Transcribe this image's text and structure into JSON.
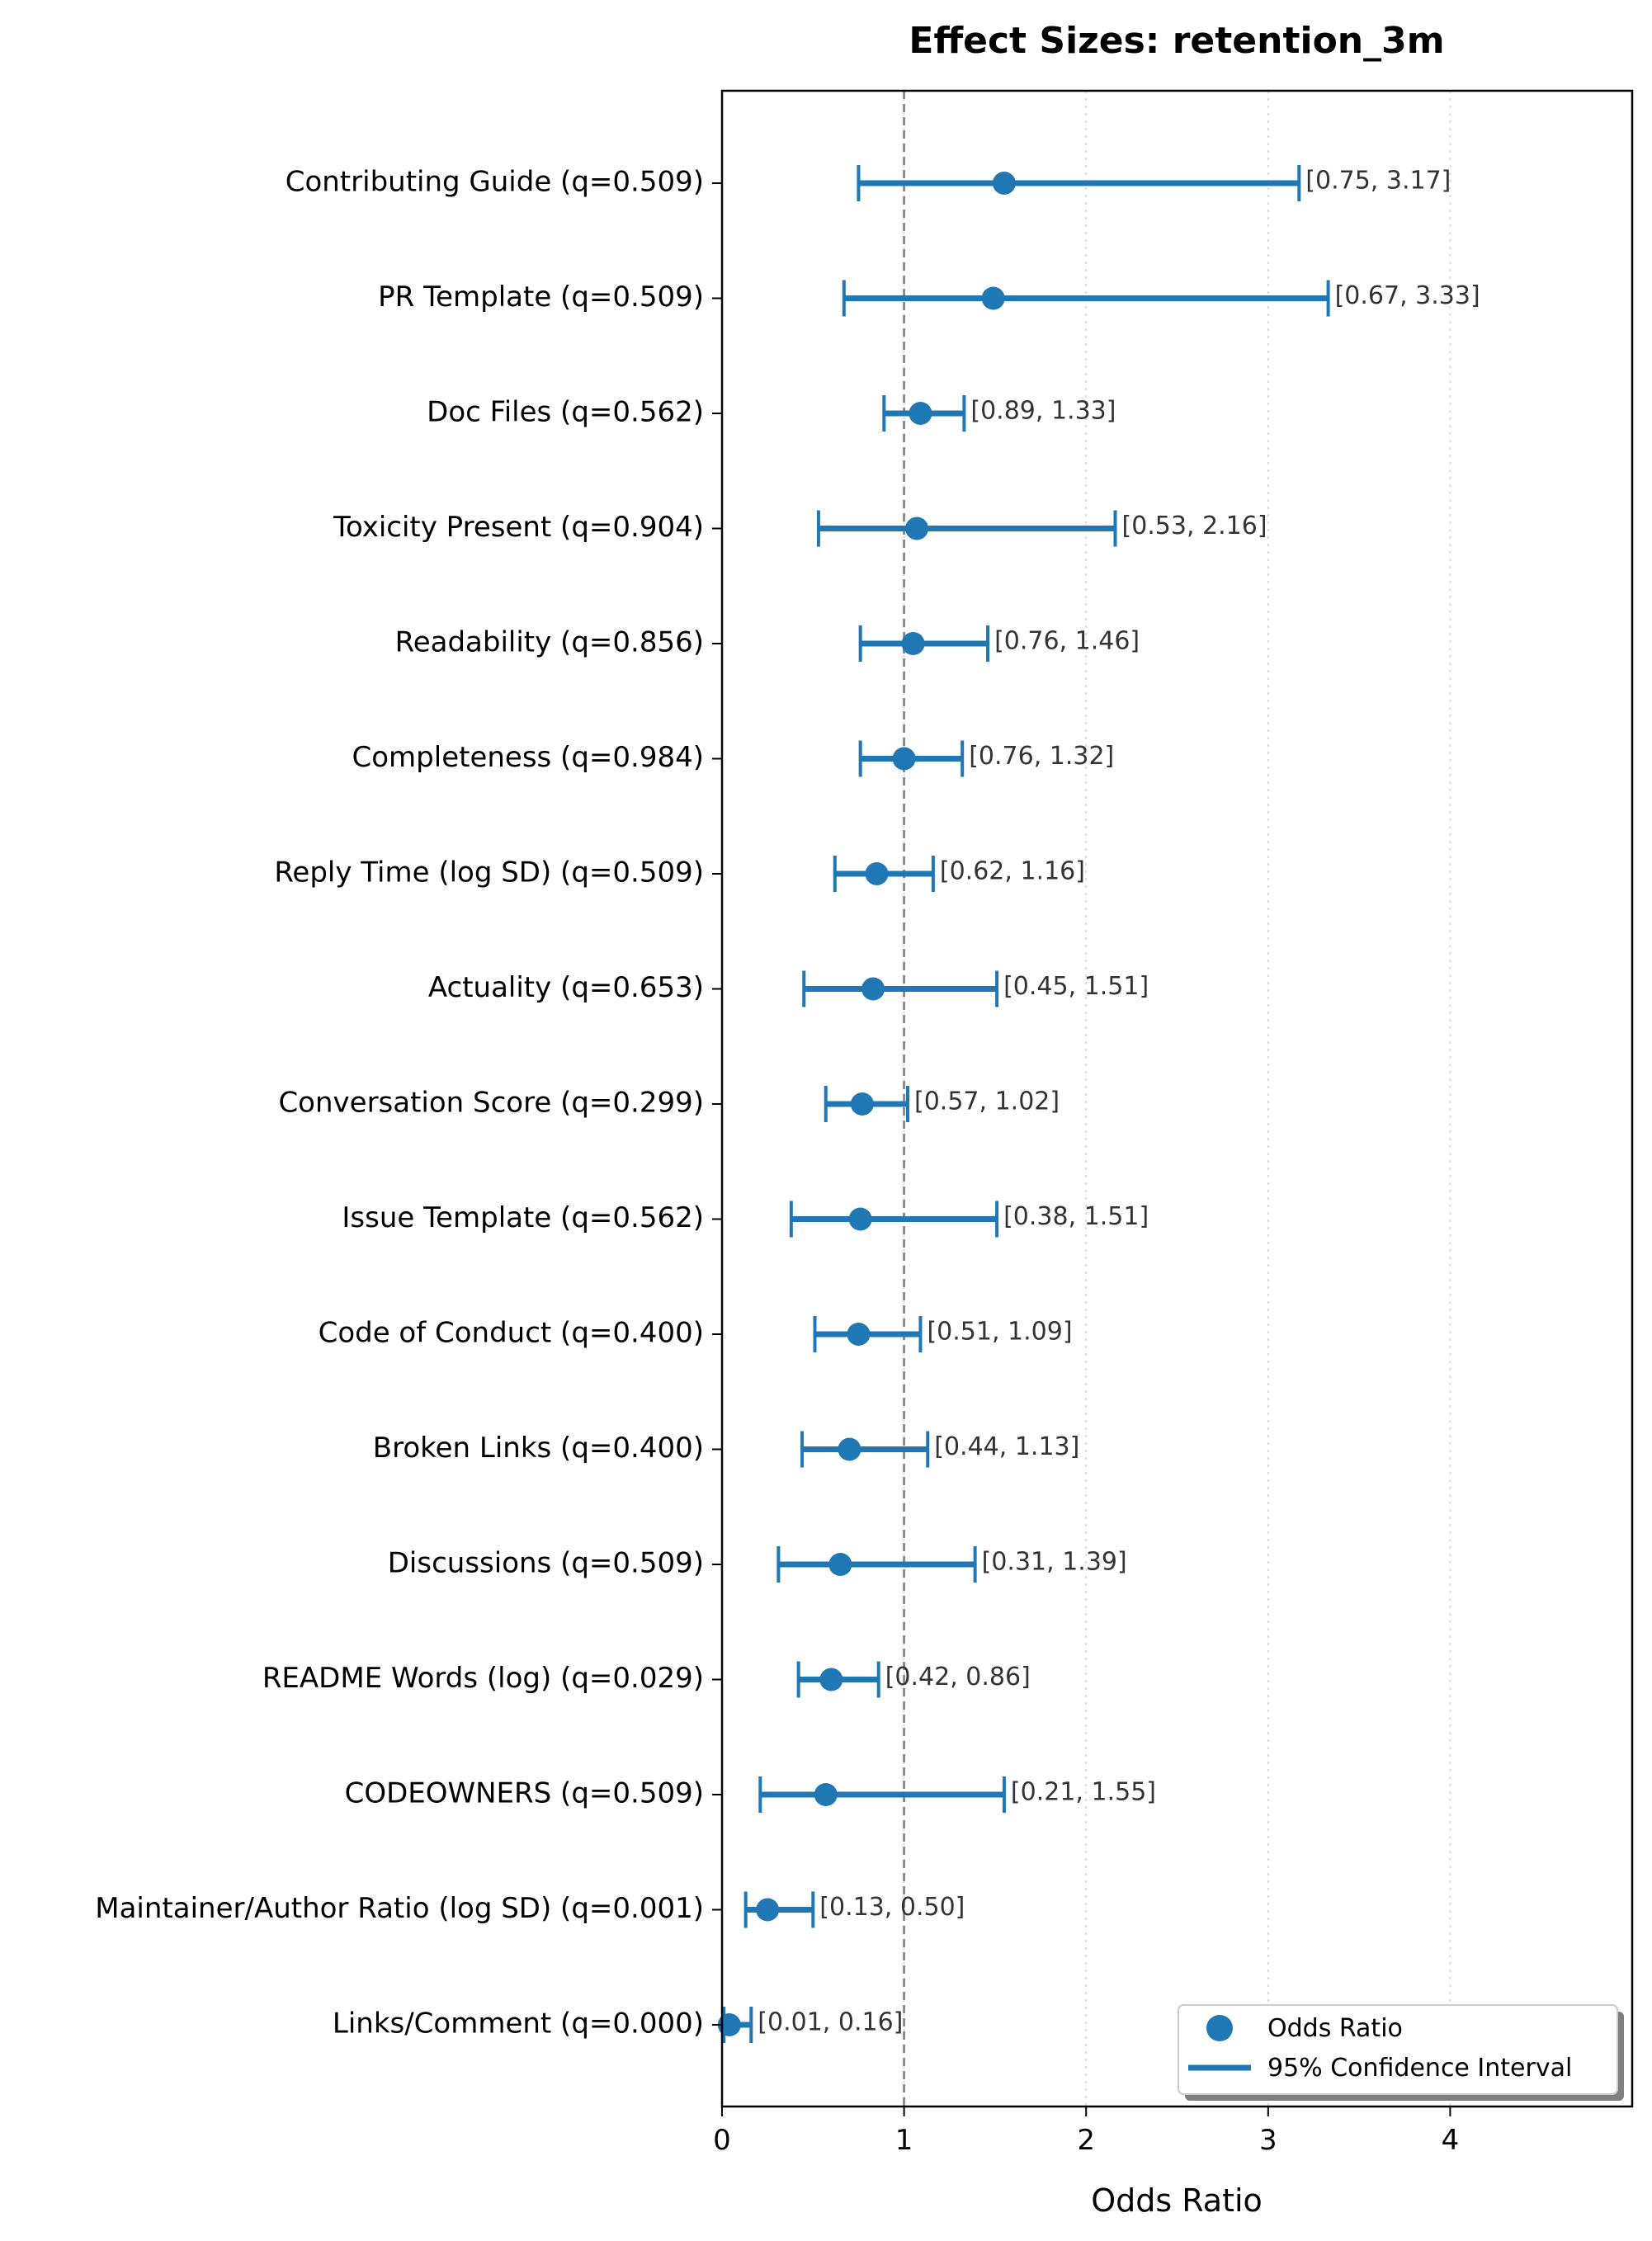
{
  "chart_data": {
    "type": "forest",
    "title": "Effect Sizes: retention_3m",
    "xlabel": "Odds Ratio",
    "ylabel": "",
    "xlim": [
      0,
      5
    ],
    "xticks": [
      0,
      1,
      2,
      3,
      4
    ],
    "x_tick_labels": [
      "0",
      "1",
      "2",
      "3",
      "4"
    ],
    "reference_line": 1,
    "grid": "x-axis minor dotted",
    "legend_position": "lower-right",
    "legend": {
      "point_label": "Odds Ratio",
      "line_label": "95% Confidence Interval"
    },
    "colors": {
      "series": "#1f77b4",
      "reference": "#8c8c8c",
      "grid": "#d9d9d9",
      "ci_text": "#333333"
    },
    "rows": [
      {
        "label": "Contributing Guide (q=0.509)",
        "or": 1.55,
        "low": 0.75,
        "high": 3.17,
        "ci_text": "[0.75, 3.17]"
      },
      {
        "label": "PR Template (q=0.509)",
        "or": 1.49,
        "low": 0.67,
        "high": 3.33,
        "ci_text": "[0.67, 3.33]"
      },
      {
        "label": "Doc Files (q=0.562)",
        "or": 1.09,
        "low": 0.89,
        "high": 1.33,
        "ci_text": "[0.89, 1.33]"
      },
      {
        "label": "Toxicity Present (q=0.904)",
        "or": 1.07,
        "low": 0.53,
        "high": 2.16,
        "ci_text": "[0.53, 2.16]"
      },
      {
        "label": "Readability (q=0.856)",
        "or": 1.05,
        "low": 0.76,
        "high": 1.46,
        "ci_text": "[0.76, 1.46]"
      },
      {
        "label": "Completeness (q=0.984)",
        "or": 1.0,
        "low": 0.76,
        "high": 1.32,
        "ci_text": "[0.76, 1.32]"
      },
      {
        "label": "Reply Time (log SD) (q=0.509)",
        "or": 0.85,
        "low": 0.62,
        "high": 1.16,
        "ci_text": "[0.62, 1.16]"
      },
      {
        "label": "Actuality (q=0.653)",
        "or": 0.83,
        "low": 0.45,
        "high": 1.51,
        "ci_text": "[0.45, 1.51]"
      },
      {
        "label": "Conversation Score (q=0.299)",
        "or": 0.77,
        "low": 0.57,
        "high": 1.02,
        "ci_text": "[0.57, 1.02]"
      },
      {
        "label": "Issue Template (q=0.562)",
        "or": 0.76,
        "low": 0.38,
        "high": 1.51,
        "ci_text": "[0.38, 1.51]"
      },
      {
        "label": "Code of Conduct (q=0.400)",
        "or": 0.75,
        "low": 0.51,
        "high": 1.09,
        "ci_text": "[0.51, 1.09]"
      },
      {
        "label": "Broken Links (q=0.400)",
        "or": 0.7,
        "low": 0.44,
        "high": 1.13,
        "ci_text": "[0.44, 1.13]"
      },
      {
        "label": "Discussions (q=0.509)",
        "or": 0.65,
        "low": 0.31,
        "high": 1.39,
        "ci_text": "[0.31, 1.39]"
      },
      {
        "label": "README Words (log) (q=0.029)",
        "or": 0.6,
        "low": 0.42,
        "high": 0.86,
        "ci_text": "[0.42, 0.86]"
      },
      {
        "label": "CODEOWNERS (q=0.509)",
        "or": 0.57,
        "low": 0.21,
        "high": 1.55,
        "ci_text": "[0.21, 1.55]"
      },
      {
        "label": "Maintainer/Author Ratio (log SD) (q=0.001)",
        "or": 0.25,
        "low": 0.13,
        "high": 0.5,
        "ci_text": "[0.13, 0.50]"
      },
      {
        "label": "Links/Comment (q=0.000)",
        "or": 0.04,
        "low": 0.01,
        "high": 0.16,
        "ci_text": "[0.01, 0.16]"
      }
    ]
  }
}
